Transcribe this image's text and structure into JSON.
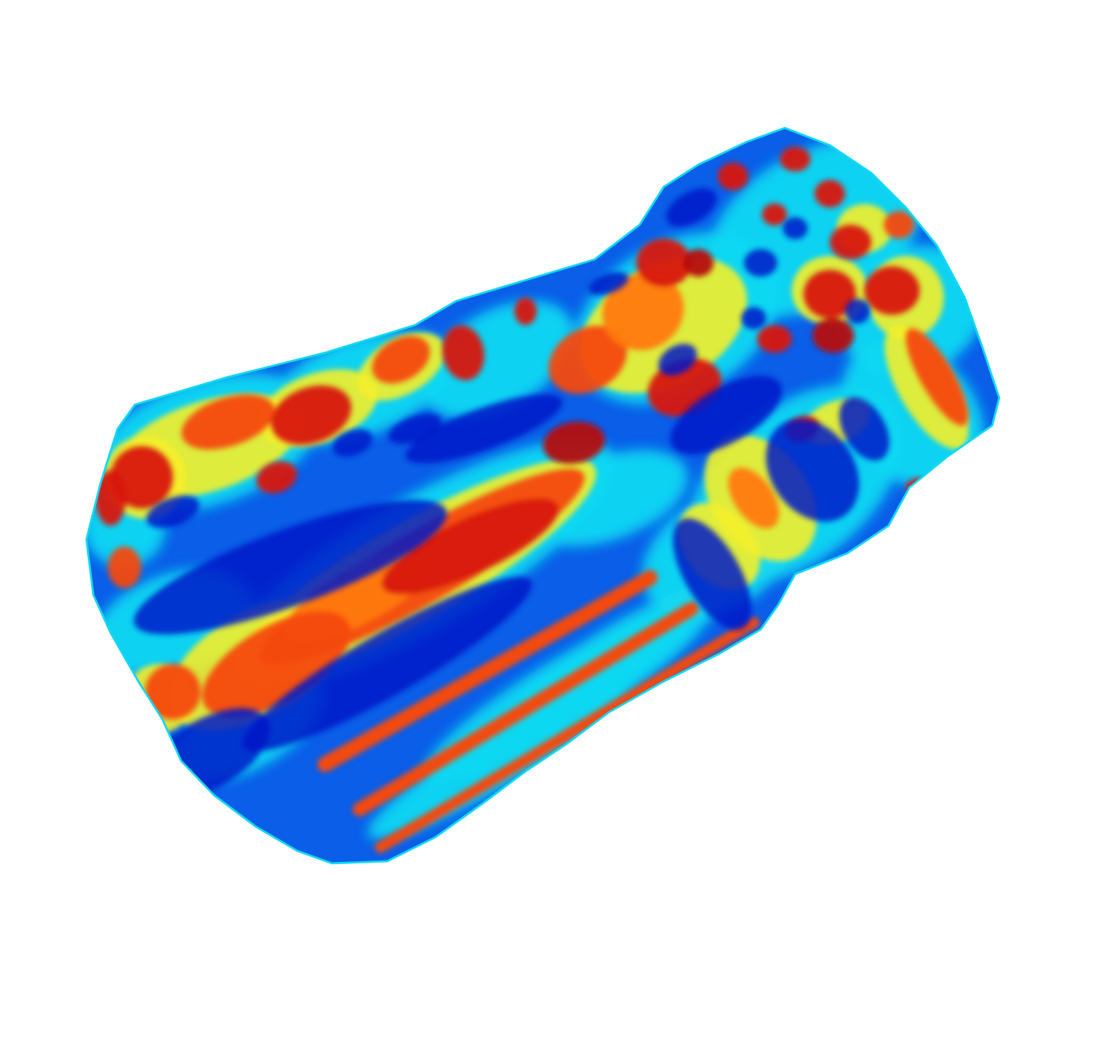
{
  "figure": {
    "background": "#ffffff",
    "colormap": "jet",
    "palette": {
      "dark_blue": "#0016c8",
      "blue": "#0a5ee8",
      "mid_blue": "#1e78f0",
      "cyan": "#12d8f2",
      "aqua": "#40f0c8",
      "yellow": "#f4f02a",
      "orange": "#ff7a10",
      "red_orange": "#f44a08",
      "red": "#d81808",
      "dark_red": "#b40a0a"
    }
  }
}
